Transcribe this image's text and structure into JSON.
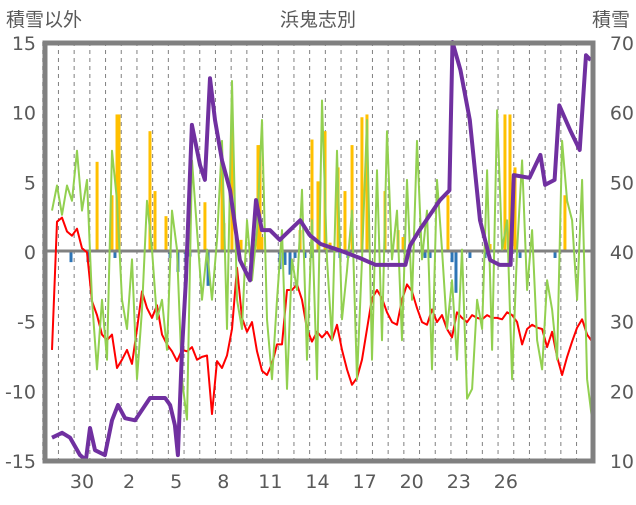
{
  "chart_data": {
    "type": "line",
    "title": "浜鬼志別",
    "ylabel_left": "積雪以外",
    "ylabel_right": "積雪",
    "ylim_left": [
      -15,
      15
    ],
    "ylim_right": [
      10,
      70
    ],
    "yticks_left": [
      "15",
      "10",
      "5",
      "0",
      "-5",
      "-10",
      "-15"
    ],
    "yticks_right": [
      "70",
      "60",
      "50",
      "40",
      "30",
      "20",
      "10"
    ],
    "xlim_days": [
      -2.3,
      32.6
    ],
    "xticks": [
      {
        "day": 0,
        "label": "30"
      },
      {
        "day": 3,
        "label": "2"
      },
      {
        "day": 6,
        "label": "5"
      },
      {
        "day": 9,
        "label": "8"
      },
      {
        "day": 12,
        "label": "11"
      },
      {
        "day": 15,
        "label": "14"
      },
      {
        "day": 18,
        "label": "17"
      },
      {
        "day": 21,
        "label": "20"
      },
      {
        "day": 24,
        "label": "23"
      },
      {
        "day": 27,
        "label": "26"
      }
    ],
    "grid": "vertical dashed daily",
    "colors": {
      "red": "#ff0000",
      "green": "#92d050",
      "orange": "#ffc000",
      "blue": "#2e75b6",
      "purple": "#7030a0",
      "frame": "#808080"
    },
    "series": [
      {
        "name": "red",
        "axis": "left",
        "x_start": -1.91,
        "x_step": 0.3185,
        "values": [
          -7.1,
          2.1,
          2.4,
          1.4,
          1.1,
          1.6,
          0.2,
          -0.1,
          -3.6,
          -4.6,
          -6,
          -6.4,
          -6,
          -8.4,
          -7.8,
          -7.1,
          -8.1,
          -5.6,
          -2.9,
          -4.1,
          -4.8,
          -3.9,
          -6,
          -6.7,
          -7.2,
          -7.9,
          -7.1,
          -7.2,
          -6.9,
          -7.8,
          -7.6,
          -7.5,
          -11.7,
          -7.9,
          -8.4,
          -7.5,
          -5.6,
          -1.2,
          -4.8,
          -5.8,
          -5.1,
          -7.2,
          -8.6,
          -8.9,
          -8.1,
          -6.7,
          -6.7,
          -2.8,
          -2.8,
          -2.4,
          -3.5,
          -5.6,
          -6.5,
          -5.8,
          -6.2,
          -5.8,
          -6.4,
          -5.3,
          -7.1,
          -8.5,
          -9.6,
          -9.1,
          -7.8,
          -5.6,
          -3.4,
          -2.8,
          -3.4,
          -4.4,
          -5.1,
          -5.3,
          -3.5,
          -2.4,
          -2.9,
          -4.1,
          -5.1,
          -5.3,
          -4.2,
          -5.1,
          -4.6,
          -5.6,
          -6.2,
          -4.4,
          -4.8,
          -5.1,
          -4.6,
          -4.8,
          -4.9,
          -4.6,
          -4.8,
          -4.8,
          -4.9,
          -4.4,
          -4.6,
          -5.1,
          -6.7,
          -5.6,
          -5.3,
          -5.5,
          -5.6,
          -6.9,
          -5.8,
          -7.6,
          -8.9,
          -7.6,
          -6.5,
          -5.5,
          -4.9,
          -6,
          -6.5
        ]
      },
      {
        "name": "green",
        "axis": "left",
        "x_start": -1.91,
        "x_step": 0.3185,
        "values": [
          2.9,
          4.7,
          2.6,
          4.7,
          3.6,
          7.2,
          2.9,
          5.1,
          -3.5,
          -8.5,
          -3.5,
          -7.8,
          7.2,
          3.6,
          -3.5,
          -5.6,
          -0.6,
          -9.2,
          -4.2,
          3.6,
          0.1,
          -4.9,
          -3.5,
          -7.1,
          2.9,
          0.1,
          -9.2,
          -12.1,
          6.5,
          1.5,
          -3.5,
          0.1,
          -3.5,
          0.8,
          7.9,
          -5.6,
          12.2,
          -3.5,
          -5.6,
          2.2,
          -2.1,
          1.5,
          9.4,
          -4.9,
          -9.2,
          -3.5,
          1.5,
          -9.9,
          -0.6,
          -2.8,
          4.4,
          -7.8,
          2.2,
          -9.2,
          10.8,
          -0.6,
          -6.4,
          7.2,
          -4.9,
          -1.4,
          2.9,
          -9.2,
          -0.6,
          9.4,
          -7.8,
          5.8,
          -6.4,
          8.6,
          -0.6,
          2.9,
          -6.4,
          5.1,
          -3.5,
          7.9,
          -0.6,
          2.9,
          -8.5,
          5.1,
          0.1,
          -5.6,
          -2.1,
          -7.8,
          0.1,
          -10.6,
          -9.9,
          -3.5,
          -5.6,
          5.8,
          -7.1,
          10.1,
          0.1,
          2.2,
          -9.2,
          0.1,
          6.5,
          -2.8,
          1.5,
          -6.4,
          -8.5,
          -2.1,
          -4.2,
          -7.8,
          7.9,
          3.6,
          2.2,
          -3.5,
          5.1,
          -9.2,
          -12.1
        ]
      },
      {
        "name": "orange",
        "axis": "left",
        "type": "bar",
        "points": [
          [
            0.96,
            6.4
          ],
          [
            1.91,
            4
          ],
          [
            2.23,
            9.8
          ],
          [
            2.36,
            9.8
          ],
          [
            4.33,
            8.6
          ],
          [
            4.65,
            4.3
          ],
          [
            5.35,
            2.5
          ],
          [
            7.83,
            3.5
          ],
          [
            8.92,
            6
          ],
          [
            9.04,
            2
          ],
          [
            9.55,
            9.8
          ],
          [
            10.13,
            0.8
          ],
          [
            11.21,
            7.6
          ],
          [
            11.34,
            7.6
          ],
          [
            11.46,
            1
          ],
          [
            13.89,
            1.5
          ],
          [
            14.65,
            8
          ],
          [
            15.03,
            5
          ],
          [
            15.48,
            8.6
          ],
          [
            15.8,
            0.6
          ],
          [
            16.31,
            6
          ],
          [
            16.75,
            4.3
          ],
          [
            17.2,
            7.6
          ],
          [
            17.83,
            9.6
          ],
          [
            18.15,
            9.8
          ],
          [
            19.3,
            4.3
          ],
          [
            20.13,
            1.5
          ],
          [
            20.45,
            1
          ],
          [
            23.31,
            4
          ],
          [
            25.99,
            0.5
          ],
          [
            26.94,
            9.8
          ],
          [
            27.26,
            9.8
          ],
          [
            27.58,
            6
          ],
          [
            30.76,
            4
          ]
        ]
      },
      {
        "name": "blue",
        "axis": "left",
        "type": "bar",
        "points": [
          [
            -0.7,
            -0.8
          ],
          [
            0.38,
            -0.8
          ],
          [
            2.1,
            -0.5
          ],
          [
            5.61,
            -0.5
          ],
          [
            6.11,
            -1.5
          ],
          [
            6.62,
            -1.2
          ],
          [
            6.88,
            -0.4
          ],
          [
            8.03,
            -2.5
          ],
          [
            12.61,
            -1.3
          ],
          [
            12.93,
            -1
          ],
          [
            13.25,
            -1.7
          ],
          [
            13.57,
            -0.5
          ],
          [
            14.2,
            -0.5
          ],
          [
            14.65,
            -0.5
          ],
          [
            16.43,
            -0.5
          ],
          [
            16.94,
            -0.5
          ],
          [
            21.85,
            -0.5
          ],
          [
            22.17,
            -0.5
          ],
          [
            23.57,
            -0.8
          ],
          [
            23.82,
            -3
          ],
          [
            24.71,
            -0.5
          ],
          [
            25.67,
            -0.5
          ],
          [
            27.9,
            -0.5
          ],
          [
            30.13,
            -0.5
          ]
        ]
      },
      {
        "name": "purple",
        "axis": "right",
        "points": [
          [
            -1.91,
            13.2
          ],
          [
            -1.27,
            13.9
          ],
          [
            -0.76,
            13.2
          ],
          [
            -0.13,
            10.7
          ],
          [
            0.25,
            10
          ],
          [
            0.51,
            14.6
          ],
          [
            0.83,
            11.4
          ],
          [
            1.46,
            10.7
          ],
          [
            1.91,
            15.7
          ],
          [
            2.29,
            17.9
          ],
          [
            2.74,
            16
          ],
          [
            3.38,
            15.7
          ],
          [
            4.33,
            18.9
          ],
          [
            5.29,
            18.9
          ],
          [
            5.61,
            17.9
          ],
          [
            5.92,
            15
          ],
          [
            6.11,
            10.7
          ],
          [
            6.37,
            25.8
          ],
          [
            6.62,
            35.8
          ],
          [
            7.0,
            58.1
          ],
          [
            7.52,
            52.3
          ],
          [
            7.83,
            50.2
          ],
          [
            8.15,
            64.8
          ],
          [
            8.47,
            58.8
          ],
          [
            8.92,
            53
          ],
          [
            9.43,
            48.7
          ],
          [
            10.06,
            38.7
          ],
          [
            10.7,
            35.8
          ],
          [
            11.08,
            47.3
          ],
          [
            11.46,
            43
          ],
          [
            11.97,
            43
          ],
          [
            12.6,
            41.6
          ],
          [
            13.25,
            43
          ],
          [
            13.9,
            44.4
          ],
          [
            14.5,
            42.3
          ],
          [
            15.2,
            41
          ],
          [
            16.4,
            40.1
          ],
          [
            17.7,
            39
          ],
          [
            18.7,
            38
          ],
          [
            20.6,
            38
          ],
          [
            20.9,
            40.8
          ],
          [
            21.5,
            43
          ],
          [
            22.8,
            47.3
          ],
          [
            23.4,
            48.7
          ],
          [
            23.6,
            70
          ],
          [
            24.1,
            66
          ],
          [
            24.7,
            58.8
          ],
          [
            25.35,
            44.4
          ],
          [
            26.0,
            38.7
          ],
          [
            26.6,
            38
          ],
          [
            27.3,
            38
          ],
          [
            27.5,
            50.9
          ],
          [
            28.5,
            50.5
          ],
          [
            29.2,
            53.8
          ],
          [
            29.5,
            49.5
          ],
          [
            30.1,
            50.2
          ],
          [
            30.4,
            60.9
          ],
          [
            31.1,
            57.3
          ],
          [
            31.7,
            54.5
          ],
          [
            32.1,
            68.1
          ],
          [
            32.4,
            67.4
          ]
        ]
      }
    ]
  }
}
